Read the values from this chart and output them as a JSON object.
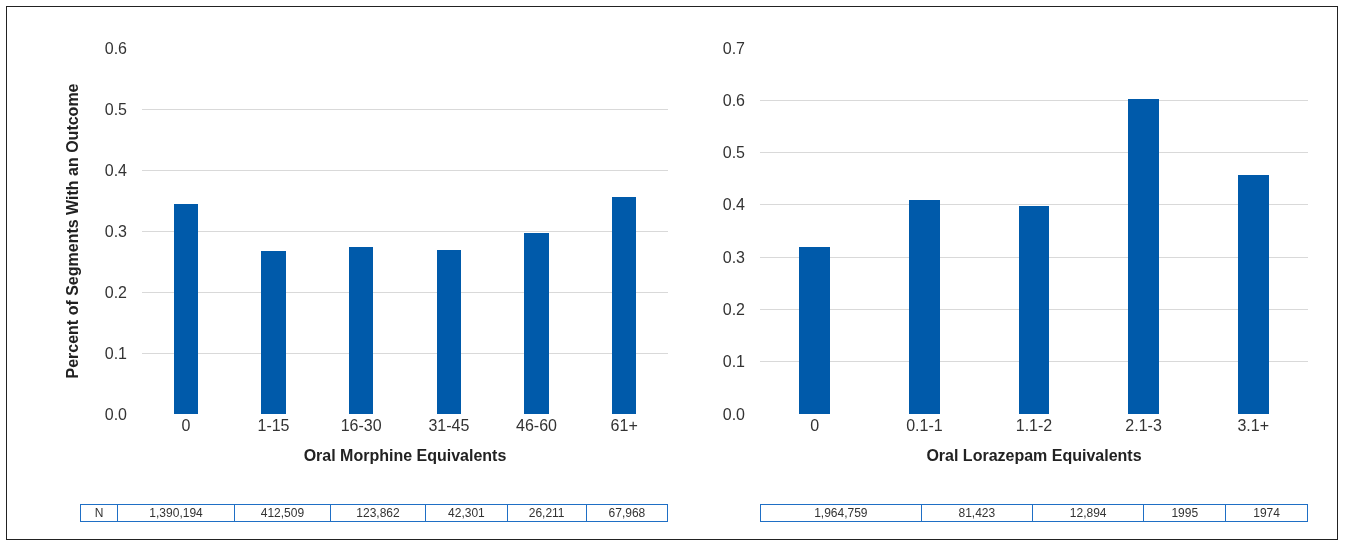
{
  "chart_data": [
    {
      "type": "bar",
      "ylabel": "Percent of Segments With an Outcome",
      "xlabel": "Oral Morphine Equivalents",
      "categories": [
        "0",
        "1-15",
        "16-30",
        "31-45",
        "46-60",
        "61+"
      ],
      "values": [
        0.345,
        0.268,
        0.274,
        0.269,
        0.297,
        0.356
      ],
      "color": "#005aaa",
      "ylim": [
        0,
        0.6
      ],
      "yticks": [
        {
          "value": 0,
          "label": "0.0"
        },
        0.1,
        0.2,
        0.3,
        0.4,
        0.5,
        0.6
      ],
      "grid": "y",
      "annotations": [
        "N",
        "1,390,194",
        "412,509",
        "123,862",
        "42,301",
        "26,211",
        "67,968"
      ]
    },
    {
      "type": "bar",
      "xlabel": "Oral Lorazepam Equivalents",
      "categories": [
        "0",
        "0.1-1",
        "1.1-2",
        "2.1-3",
        "3.1+"
      ],
      "values": [
        0.32,
        0.41,
        0.397,
        0.602,
        0.458
      ],
      "color": "#005aaa",
      "ylim": [
        0,
        0.7
      ],
      "yticks": [
        {
          "value": 0,
          "label": "0.0"
        },
        0.1,
        0.2,
        0.3,
        0.4,
        0.5,
        0.6,
        0.7
      ],
      "grid": "y",
      "annotations": [
        "1,964,759",
        "81,423",
        "12,894",
        "1995",
        "1974"
      ]
    }
  ]
}
